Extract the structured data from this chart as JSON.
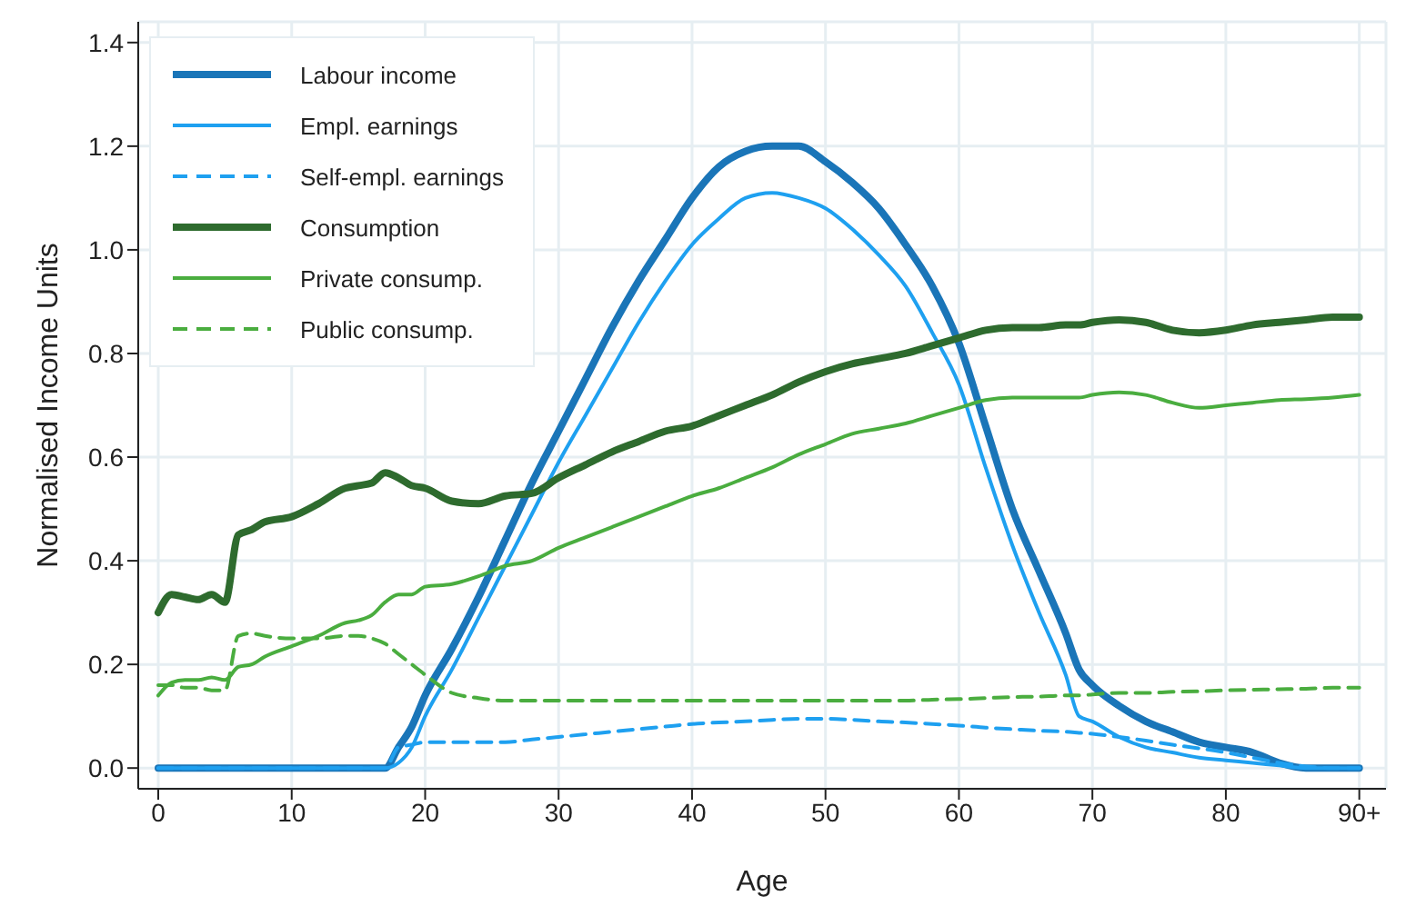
{
  "chart_data": {
    "type": "line",
    "xlabel": "Age",
    "ylabel": "Normalised Income Units",
    "x": [
      0,
      1,
      2,
      3,
      4,
      5,
      6,
      7,
      8,
      10,
      12,
      14,
      15,
      16,
      17,
      18,
      19,
      20,
      22,
      24,
      26,
      28,
      30,
      32,
      34,
      36,
      38,
      40,
      42,
      44,
      46,
      48,
      50,
      52,
      54,
      56,
      58,
      60,
      62,
      64,
      66,
      68,
      69,
      70,
      72,
      74,
      76,
      78,
      80,
      82,
      84,
      86,
      88,
      90
    ],
    "series": [
      {
        "name": "Labour income",
        "color": "#1a75b8",
        "values": [
          0,
          0,
          0,
          0,
          0,
          0,
          0,
          0,
          0,
          0,
          0,
          0,
          0,
          0,
          0,
          0.04,
          0.08,
          0.14,
          0.23,
          0.33,
          0.44,
          0.55,
          0.65,
          0.75,
          0.85,
          0.94,
          1.02,
          1.1,
          1.16,
          1.19,
          1.2,
          1.2,
          1.17,
          1.13,
          1.08,
          1.01,
          0.93,
          0.82,
          0.66,
          0.5,
          0.38,
          0.26,
          0.19,
          0.16,
          0.12,
          0.09,
          0.07,
          0.05,
          0.04,
          0.03,
          0.01,
          0,
          0,
          0
        ]
      },
      {
        "name": "Empl. earnings",
        "color": "#1ea0f0",
        "values": [
          0,
          0,
          0,
          0,
          0,
          0,
          0,
          0,
          0,
          0,
          0,
          0,
          0,
          0,
          0,
          0.01,
          0.04,
          0.1,
          0.19,
          0.29,
          0.39,
          0.49,
          0.59,
          0.68,
          0.77,
          0.86,
          0.94,
          1.01,
          1.06,
          1.1,
          1.11,
          1.1,
          1.08,
          1.04,
          0.99,
          0.93,
          0.84,
          0.74,
          0.58,
          0.43,
          0.3,
          0.18,
          0.1,
          0.09,
          0.06,
          0.04,
          0.03,
          0.02,
          0.015,
          0.01,
          0.005,
          0,
          0,
          0
        ]
      },
      {
        "name": "Self-empl. earnings",
        "color": "#1ea0f0",
        "line_style": "dashed",
        "values": [
          0,
          0,
          0,
          0,
          0,
          0,
          0,
          0,
          0,
          0,
          0,
          0,
          0,
          0,
          0,
          0.04,
          0.045,
          0.05,
          0.05,
          0.05,
          0.05,
          0.055,
          0.06,
          0.065,
          0.07,
          0.075,
          0.08,
          0.085,
          0.088,
          0.09,
          0.093,
          0.095,
          0.095,
          0.093,
          0.09,
          0.088,
          0.085,
          0.082,
          0.078,
          0.075,
          0.072,
          0.07,
          0.068,
          0.066,
          0.06,
          0.053,
          0.045,
          0.038,
          0.03,
          0.02,
          0.01,
          0.003,
          0,
          0
        ]
      },
      {
        "name": "Consumption",
        "color": "#2e6b2e",
        "values": [
          0.3,
          0.335,
          0.33,
          0.325,
          0.335,
          0.32,
          0.45,
          0.46,
          0.475,
          0.485,
          0.51,
          0.54,
          0.545,
          0.55,
          0.57,
          0.56,
          0.545,
          0.54,
          0.515,
          0.51,
          0.525,
          0.53,
          0.56,
          0.585,
          0.61,
          0.63,
          0.65,
          0.66,
          0.68,
          0.7,
          0.72,
          0.745,
          0.765,
          0.78,
          0.79,
          0.8,
          0.815,
          0.83,
          0.845,
          0.85,
          0.85,
          0.855,
          0.855,
          0.86,
          0.865,
          0.86,
          0.845,
          0.84,
          0.845,
          0.855,
          0.86,
          0.865,
          0.87,
          0.87
        ]
      },
      {
        "name": "Private consump.",
        "color": "#4aad3f",
        "values": [
          0.14,
          0.165,
          0.17,
          0.17,
          0.175,
          0.17,
          0.195,
          0.2,
          0.215,
          0.235,
          0.255,
          0.28,
          0.285,
          0.295,
          0.32,
          0.335,
          0.335,
          0.35,
          0.355,
          0.37,
          0.39,
          0.4,
          0.425,
          0.445,
          0.465,
          0.485,
          0.505,
          0.525,
          0.54,
          0.56,
          0.58,
          0.605,
          0.625,
          0.645,
          0.655,
          0.665,
          0.68,
          0.695,
          0.71,
          0.715,
          0.715,
          0.715,
          0.715,
          0.72,
          0.725,
          0.72,
          0.705,
          0.695,
          0.7,
          0.705,
          0.71,
          0.712,
          0.715,
          0.72
        ]
      },
      {
        "name": "Public consump.",
        "color": "#4aad3f",
        "line_style": "dashed",
        "values": [
          0.16,
          0.16,
          0.155,
          0.155,
          0.15,
          0.15,
          0.255,
          0.26,
          0.255,
          0.25,
          0.25,
          0.255,
          0.255,
          0.25,
          0.24,
          0.22,
          0.2,
          0.18,
          0.145,
          0.135,
          0.13,
          0.13,
          0.13,
          0.13,
          0.13,
          0.13,
          0.13,
          0.13,
          0.13,
          0.13,
          0.13,
          0.13,
          0.13,
          0.13,
          0.13,
          0.13,
          0.132,
          0.133,
          0.135,
          0.137,
          0.138,
          0.14,
          0.14,
          0.142,
          0.145,
          0.145,
          0.147,
          0.148,
          0.15,
          0.151,
          0.152,
          0.153,
          0.155,
          0.155
        ]
      }
    ],
    "xlim": [
      -1.5,
      92
    ],
    "xticks": [
      0,
      10,
      20,
      30,
      40,
      50,
      60,
      70,
      80,
      {
        "value": 90,
        "label": "90+"
      }
    ],
    "ylim": [
      -0.04,
      1.44
    ],
    "yticks": [
      {
        "value": 0,
        "label": "0.0"
      },
      0.2,
      0.4,
      0.6,
      0.8,
      {
        "value": 1,
        "label": "1.0"
      },
      1.2,
      1.4
    ],
    "grid": true,
    "legend": "top left",
    "marker": "none"
  }
}
